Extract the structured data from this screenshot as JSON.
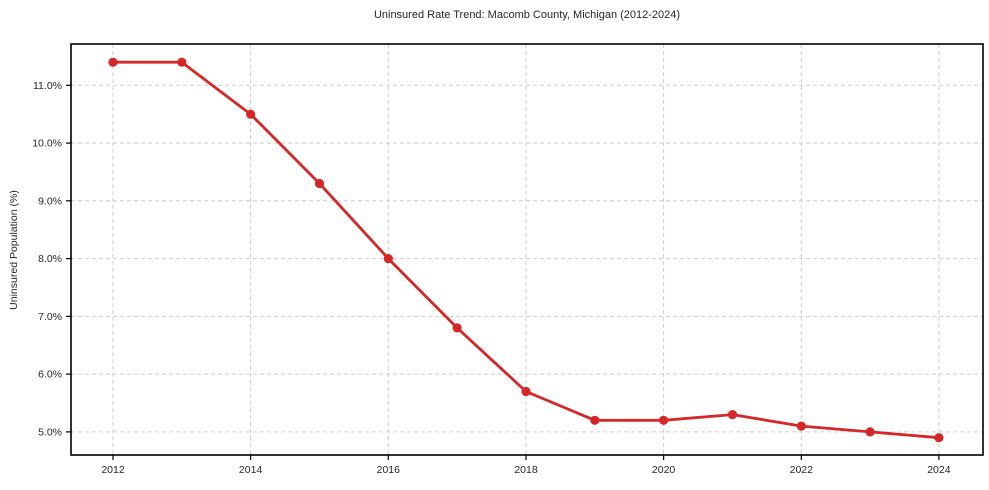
{
  "title": "Uninsured Rate Trend: Macomb County, Michigan (2012-2024)",
  "chart_data": {
    "type": "line",
    "title": "Uninsured Rate Trend: Macomb County, Michigan (2012-2024)",
    "xlabel": "",
    "ylabel": "Uninsured Population (%)",
    "x": [
      2012,
      2013,
      2014,
      2015,
      2016,
      2017,
      2018,
      2019,
      2020,
      2021,
      2022,
      2023,
      2024
    ],
    "values": [
      11.4,
      11.4,
      10.5,
      9.3,
      8.0,
      6.8,
      5.7,
      5.2,
      5.2,
      5.3,
      5.1,
      5.0,
      4.9
    ],
    "xlim": [
      2011.39,
      2024.64
    ],
    "ylim": [
      4.6,
      11.715
    ],
    "xtick_values": [
      2012,
      2014,
      2016,
      2018,
      2020,
      2022,
      2024
    ],
    "xtick_labels": [
      "2012",
      "2014",
      "2016",
      "2018",
      "2020",
      "2022",
      "2024"
    ],
    "ytick_values": [
      5.0,
      6.0,
      7.0,
      8.0,
      9.0,
      10.0,
      11.0
    ],
    "ytick_labels": [
      "5.0%",
      "6.0%",
      "7.0%",
      "8.0%",
      "9.0%",
      "10.0%",
      "11.0%"
    ],
    "grid": true,
    "grid_style": "dashed",
    "legend": "none",
    "colors": {
      "line": "#d62728",
      "marker": "#d62728",
      "grid": "#cccccc",
      "spine": "#000000",
      "text": "#262626",
      "background": "#ffffff"
    }
  }
}
